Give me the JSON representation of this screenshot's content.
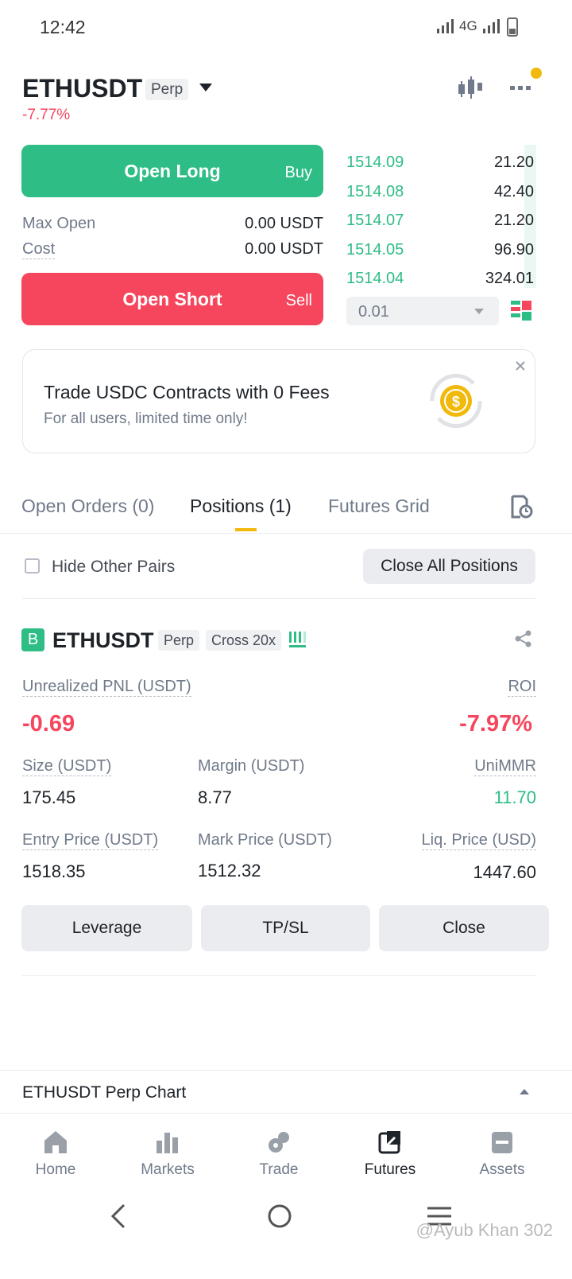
{
  "status_bar": {
    "time": "12:42",
    "network": "4G"
  },
  "header": {
    "symbol": "ETHUSDT",
    "badge": "Perp",
    "change": "-7.77%"
  },
  "trade_panel": {
    "open_long": "Open Long",
    "buy": "Buy",
    "max_open_label": "Max Open",
    "max_open_value": "0.00 USDT",
    "cost_label": "Cost",
    "cost_value": "0.00 USDT",
    "open_short": "Open Short",
    "sell": "Sell"
  },
  "order_book": {
    "rows": [
      [
        "1514.09",
        "21.20"
      ],
      [
        "1514.08",
        "42.40"
      ],
      [
        "1514.07",
        "21.20"
      ],
      [
        "1514.05",
        "96.90"
      ],
      [
        "1514.04",
        "324.01"
      ]
    ],
    "step": "0.01"
  },
  "banner": {
    "title": "Trade USDC Contracts with 0 Fees",
    "subtitle": "For all users, limited time only!"
  },
  "tabs": [
    "Open Orders (0)",
    "Positions (1)",
    "Futures Grid"
  ],
  "positions_toolbar": {
    "hide_other_pairs": "Hide Other Pairs",
    "close_all": "Close All Positions"
  },
  "position": {
    "side": "B",
    "symbol": "ETHUSDT",
    "badges": [
      "Perp",
      "Cross 20x"
    ],
    "fields": [
      {
        "label": "Unrealized PNL (USDT)",
        "value": "-0.69"
      },
      {
        "label": "ROI",
        "value": "-7.97%"
      },
      {
        "label": "Size (USDT)",
        "value": "175.45"
      },
      {
        "label": "Margin (USDT)",
        "value": "8.77"
      },
      {
        "label": "UniMMR",
        "value": "11.70"
      },
      {
        "label": "Entry Price (USDT)",
        "value": "1518.35"
      },
      {
        "label": "Mark Price (USDT)",
        "value": "1512.32"
      },
      {
        "label": "Liq. Price (USD)",
        "value": "1447.60"
      }
    ],
    "actions": [
      "Leverage",
      "TP/SL",
      "Close"
    ]
  },
  "chart_bar": {
    "label": "ETHUSDT Perp Chart"
  },
  "nav": [
    "Home",
    "Markets",
    "Trade",
    "Futures",
    "Assets"
  ],
  "watermark": "@Ayub Khan 302"
}
